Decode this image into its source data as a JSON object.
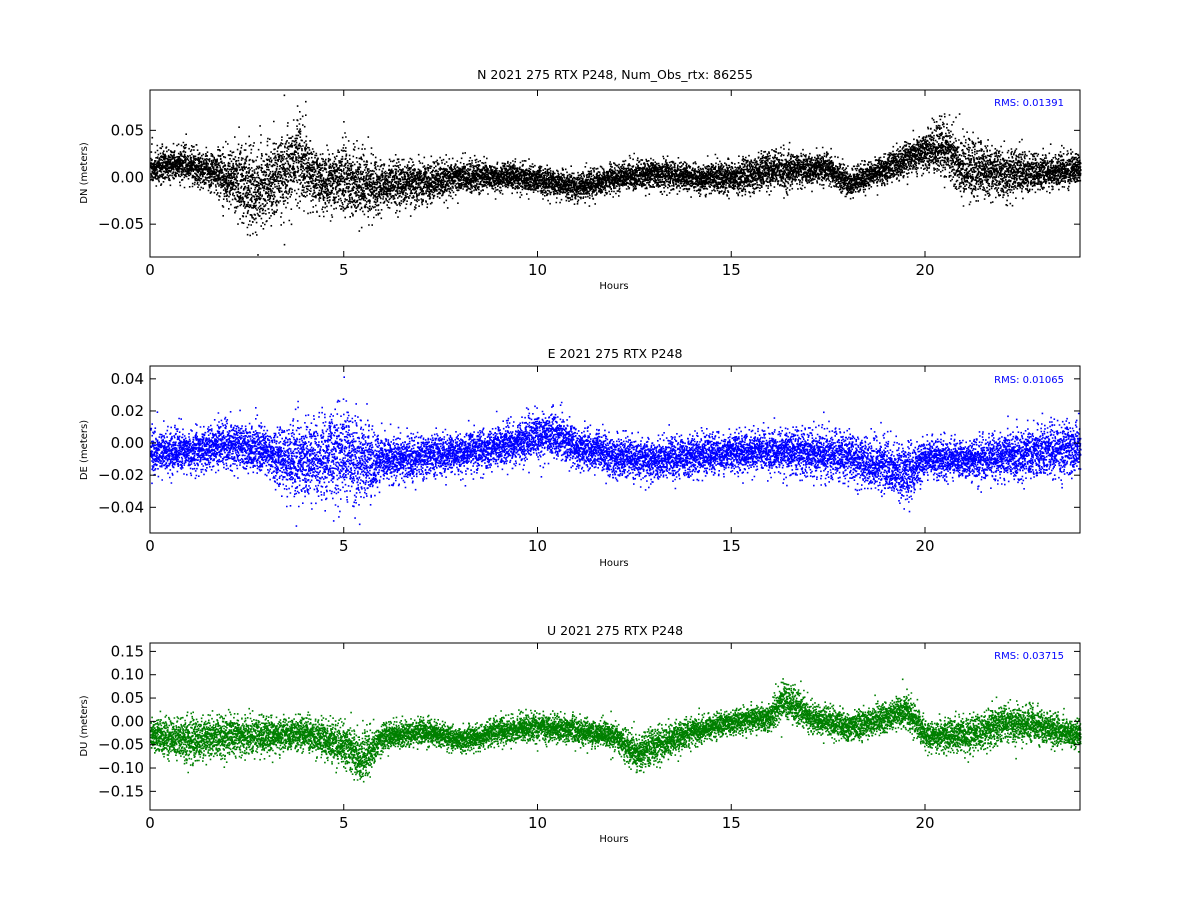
{
  "figure": {
    "panels": [
      {
        "key": "n",
        "title": "N 2021 275 RTX  P248, Num_Obs_rtx: 86255",
        "xlabel": "Hours",
        "ylabel": "DN (meters)",
        "rms_label": "RMS:  0.01391"
      },
      {
        "key": "e",
        "title": "E 2021 275 RTX  P248",
        "xlabel": "Hours",
        "ylabel": "DE (meters)",
        "rms_label": "RMS:  0.01065"
      },
      {
        "key": "u",
        "title": "U 2021 275 RTX  P248",
        "xlabel": "Hours",
        "ylabel": "DU (meters)",
        "rms_label": "RMS:  0.03715"
      }
    ]
  },
  "chart_data": [
    {
      "type": "scatter",
      "title": "N 2021 275 RTX  P248, Num_Obs_rtx: 86255",
      "xlabel": "Hours",
      "ylabel": "DN (meters)",
      "xlim": [
        0,
        24
      ],
      "ylim": [
        -0.085,
        0.093
      ],
      "xticks": [
        0,
        5,
        10,
        15,
        20
      ],
      "yticks": [
        -0.05,
        0.0,
        0.05
      ],
      "ytick_labels": [
        "−0.05",
        "0.00",
        "0.05"
      ],
      "color": "#000000",
      "annotation": "RMS:  0.01391",
      "annotation_color": "#0000ff",
      "envelope": {
        "x": [
          0.0,
          0.5,
          1.0,
          1.5,
          2.0,
          2.5,
          3.0,
          3.5,
          3.8,
          4.2,
          4.5,
          5.0,
          5.5,
          6.0,
          7.0,
          8.0,
          9.0,
          10.0,
          11.0,
          12.0,
          13.0,
          14.0,
          15.0,
          16.0,
          17.0,
          17.5,
          18.0,
          19.0,
          20.0,
          20.5,
          21.0,
          22.0,
          23.0,
          24.0
        ],
        "center": [
          0.01,
          0.015,
          0.013,
          0.008,
          0.0,
          -0.01,
          -0.008,
          0.01,
          0.02,
          0.0,
          -0.005,
          0.0,
          -0.01,
          -0.008,
          -0.005,
          0.0,
          0.002,
          -0.002,
          -0.01,
          0.0,
          0.005,
          0.0,
          0.0,
          0.008,
          0.01,
          0.01,
          -0.005,
          0.01,
          0.03,
          0.035,
          0.01,
          0.005,
          0.005,
          0.01
        ],
        "spread": [
          0.015,
          0.018,
          0.018,
          0.018,
          0.03,
          0.045,
          0.04,
          0.045,
          0.045,
          0.03,
          0.03,
          0.035,
          0.035,
          0.025,
          0.02,
          0.018,
          0.014,
          0.014,
          0.014,
          0.014,
          0.016,
          0.014,
          0.016,
          0.02,
          0.016,
          0.016,
          0.014,
          0.016,
          0.02,
          0.03,
          0.032,
          0.024,
          0.018,
          0.016
        ]
      }
    },
    {
      "type": "scatter",
      "title": "E 2021 275 RTX  P248",
      "xlabel": "Hours",
      "ylabel": "DE (meters)",
      "xlim": [
        0,
        24
      ],
      "ylim": [
        -0.056,
        0.048
      ],
      "xticks": [
        0,
        5,
        10,
        15,
        20
      ],
      "yticks": [
        -0.04,
        -0.02,
        0.0,
        0.02,
        0.04
      ],
      "ytick_labels": [
        "−0.04",
        "−0.02",
        "0.00",
        "0.02",
        "0.04"
      ],
      "color": "#0000ff",
      "annotation": "RMS:  0.01065",
      "annotation_color": "#0000ff",
      "envelope": {
        "x": [
          0.0,
          1.0,
          2.0,
          3.0,
          3.7,
          4.5,
          5.0,
          5.5,
          6.0,
          7.0,
          8.0,
          9.0,
          10.0,
          10.5,
          11.0,
          12.0,
          13.0,
          14.0,
          15.0,
          16.0,
          17.0,
          18.0,
          19.0,
          19.5,
          20.0,
          21.0,
          22.0,
          23.0,
          24.0
        ],
        "center": [
          -0.005,
          -0.005,
          0.0,
          -0.005,
          -0.012,
          -0.008,
          -0.005,
          -0.012,
          -0.01,
          -0.008,
          -0.005,
          -0.002,
          0.005,
          0.005,
          -0.002,
          -0.008,
          -0.01,
          -0.008,
          -0.005,
          -0.005,
          -0.005,
          -0.008,
          -0.015,
          -0.02,
          -0.008,
          -0.01,
          -0.008,
          -0.005,
          -0.002
        ],
        "spread": [
          0.014,
          0.012,
          0.014,
          0.014,
          0.022,
          0.024,
          0.028,
          0.024,
          0.014,
          0.012,
          0.012,
          0.012,
          0.014,
          0.014,
          0.012,
          0.012,
          0.012,
          0.012,
          0.011,
          0.012,
          0.014,
          0.014,
          0.016,
          0.018,
          0.012,
          0.012,
          0.014,
          0.016,
          0.016
        ]
      }
    },
    {
      "type": "scatter",
      "title": "U 2021 275 RTX  P248",
      "xlabel": "Hours",
      "ylabel": "DU (meters)",
      "xlim": [
        0,
        24
      ],
      "ylim": [
        -0.19,
        0.168
      ],
      "xticks": [
        0,
        5,
        10,
        15,
        20
      ],
      "yticks": [
        -0.15,
        -0.1,
        -0.05,
        0.0,
        0.05,
        0.1,
        0.15
      ],
      "ytick_labels": [
        "−0.15",
        "−0.10",
        "−0.05",
        "0.00",
        "0.05",
        "0.10",
        "0.15"
      ],
      "color": "#008000",
      "annotation": "RMS:  0.03715",
      "annotation_color": "#0000ff",
      "envelope": {
        "x": [
          0.0,
          1.0,
          2.0,
          3.0,
          4.0,
          5.0,
          5.5,
          6.0,
          7.0,
          8.0,
          9.0,
          10.0,
          11.0,
          12.0,
          12.5,
          13.0,
          14.0,
          15.0,
          16.0,
          16.3,
          17.0,
          18.0,
          19.0,
          19.5,
          20.0,
          21.0,
          22.0,
          23.0,
          24.0
        ],
        "center": [
          -0.03,
          -0.04,
          -0.03,
          -0.03,
          -0.025,
          -0.05,
          -0.08,
          -0.03,
          -0.02,
          -0.04,
          -0.02,
          -0.01,
          -0.02,
          -0.03,
          -0.07,
          -0.05,
          -0.02,
          0.0,
          0.01,
          0.05,
          0.01,
          -0.01,
          0.01,
          0.03,
          -0.03,
          -0.03,
          0.0,
          -0.01,
          -0.03
        ],
        "spread": [
          0.03,
          0.045,
          0.04,
          0.035,
          0.035,
          0.045,
          0.05,
          0.03,
          0.025,
          0.025,
          0.028,
          0.028,
          0.028,
          0.028,
          0.035,
          0.04,
          0.028,
          0.025,
          0.028,
          0.045,
          0.03,
          0.03,
          0.03,
          0.035,
          0.03,
          0.035,
          0.04,
          0.035,
          0.03
        ]
      }
    }
  ]
}
